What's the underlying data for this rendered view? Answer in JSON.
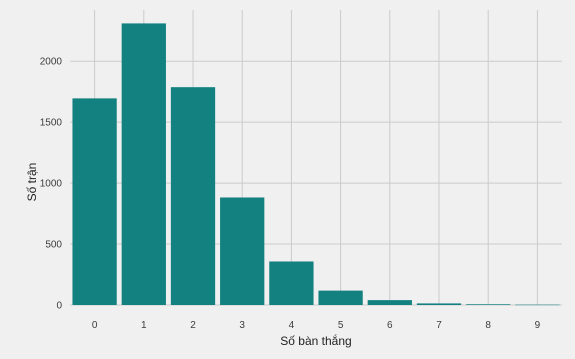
{
  "chart_data": {
    "type": "bar",
    "categories": [
      "0",
      "1",
      "2",
      "3",
      "4",
      "5",
      "6",
      "7",
      "8",
      "9"
    ],
    "values": [
      1695,
      2310,
      1787,
      882,
      357,
      118,
      40,
      13,
      6,
      3
    ],
    "title": "",
    "xlabel": "Số bàn thắng",
    "ylabel": "Số trận",
    "ylim": [
      0,
      2420
    ],
    "yticks": [
      0,
      500,
      1000,
      1500,
      2000
    ],
    "grid": true,
    "colors": {
      "bar": "#148181",
      "background": "#f0f0f0",
      "grid": "#cbcbcb"
    }
  }
}
